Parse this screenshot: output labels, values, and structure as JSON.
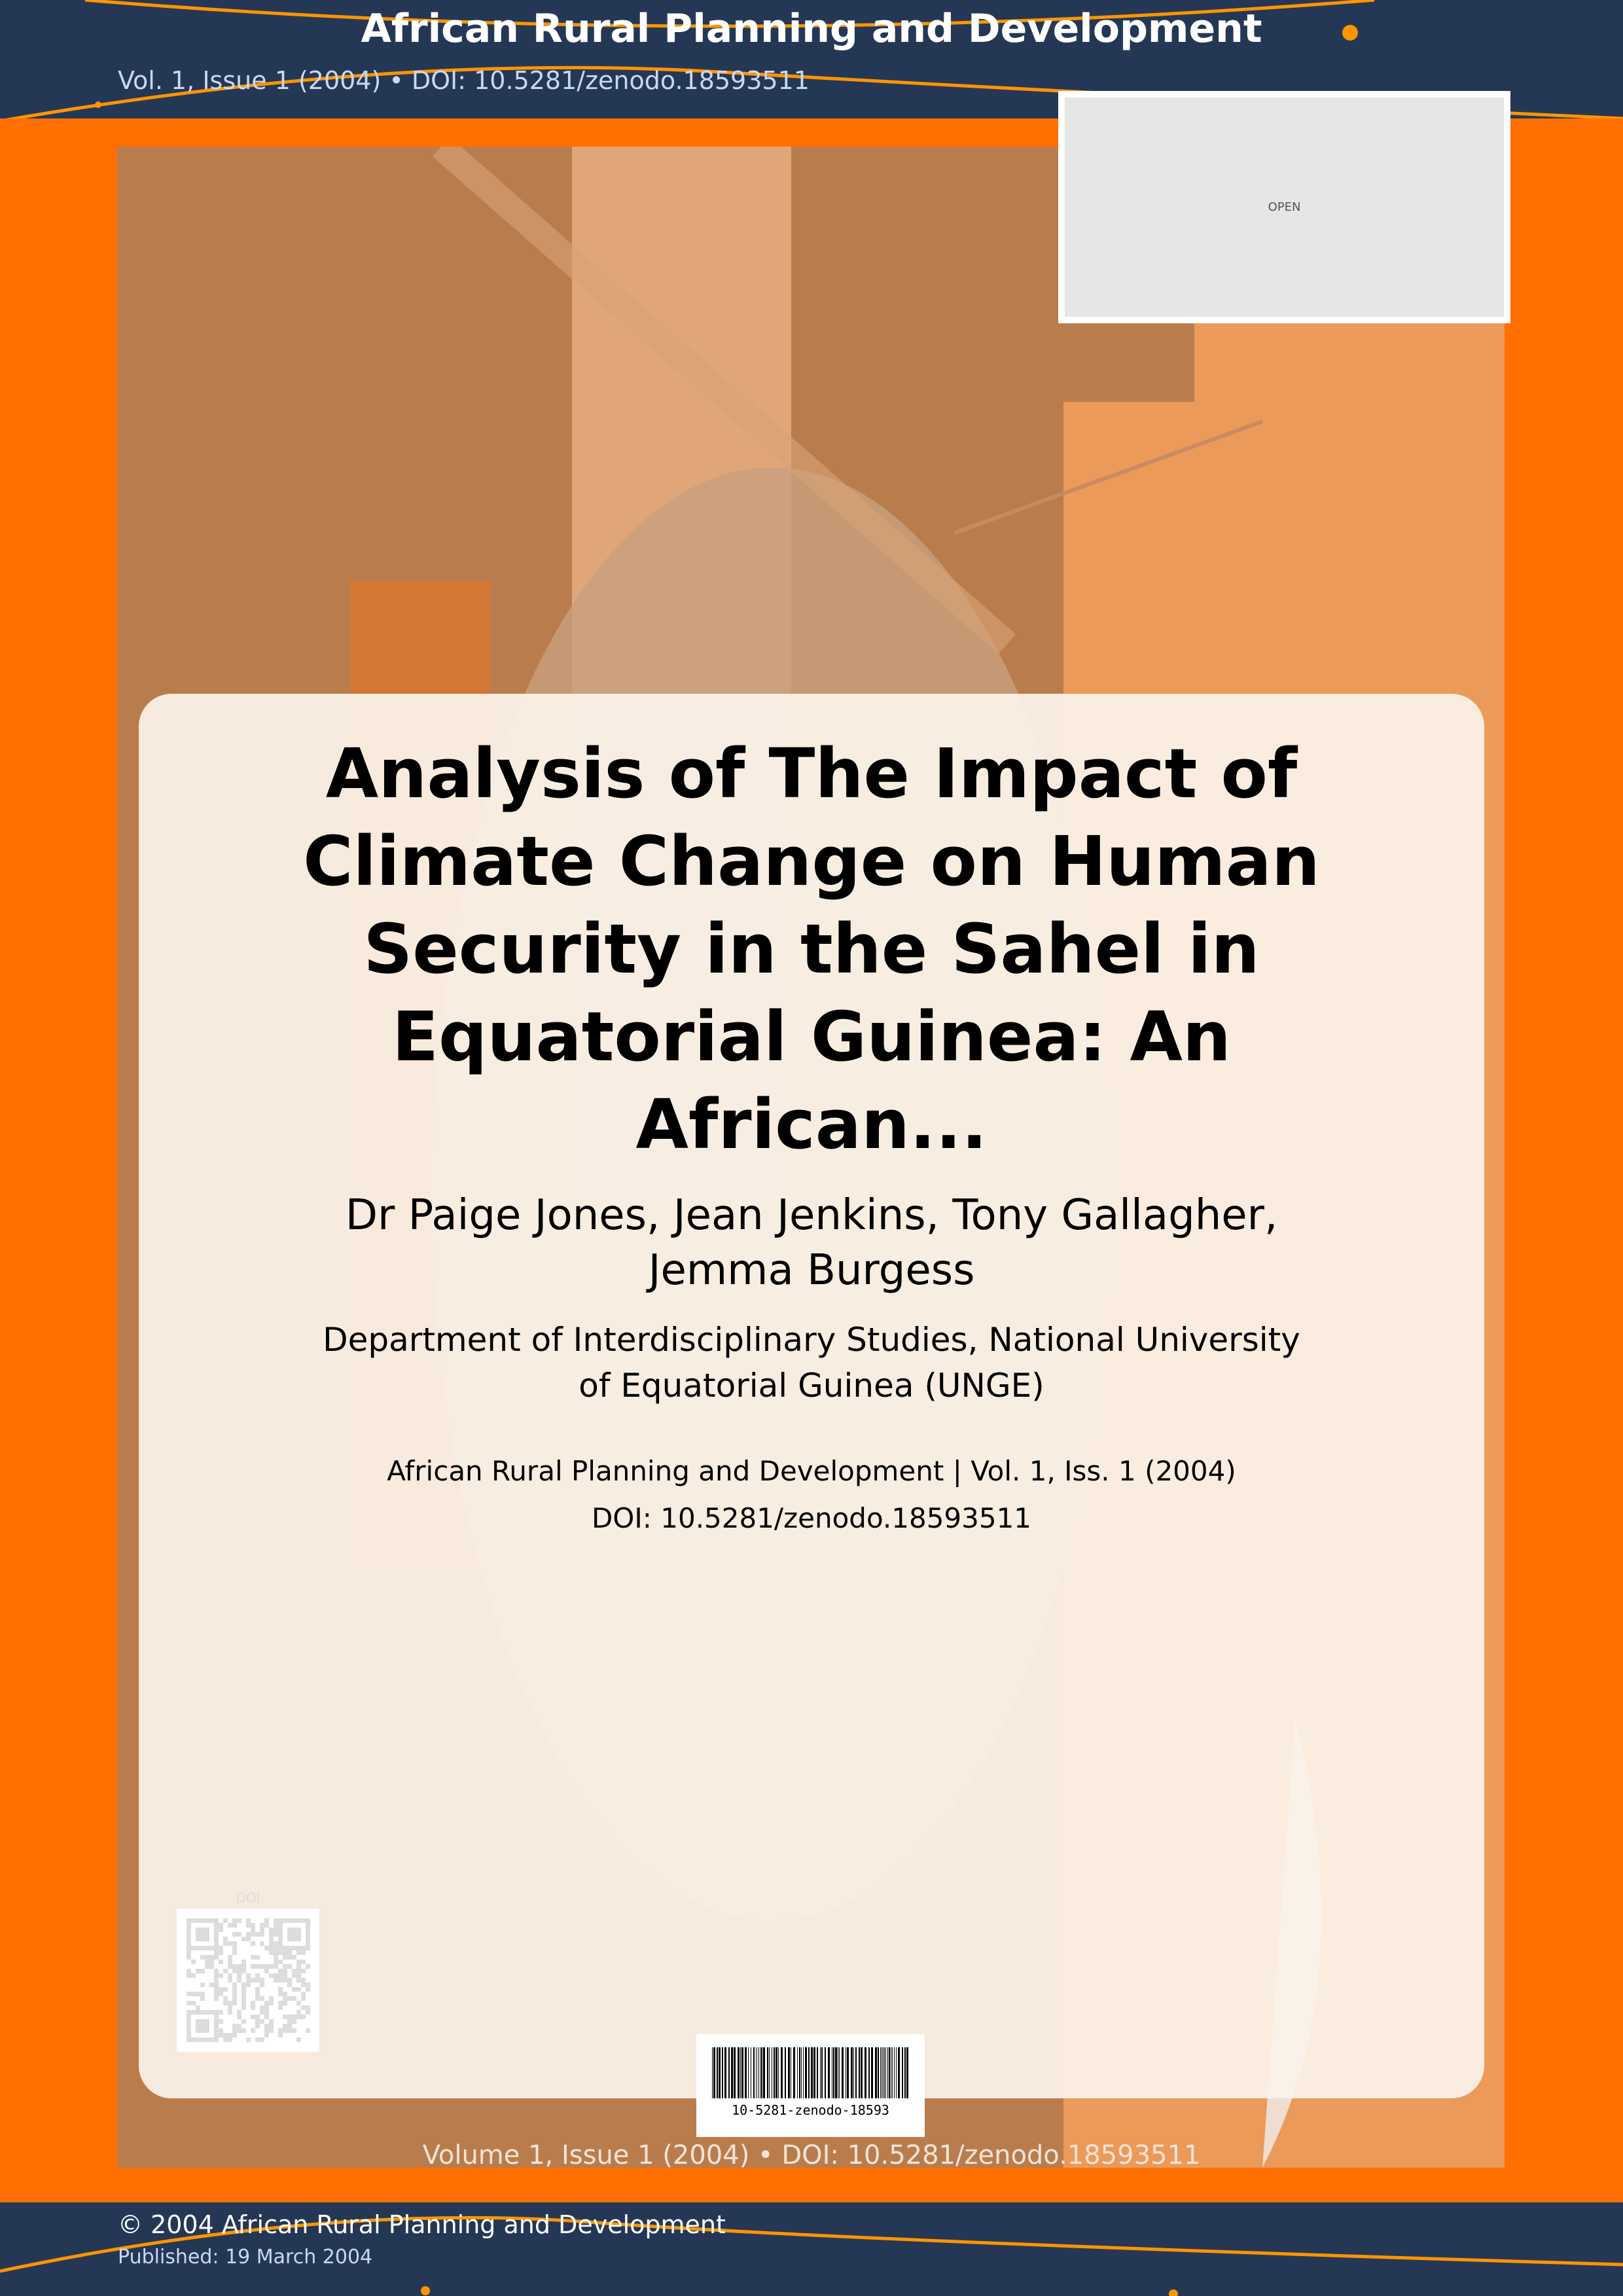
{
  "header": {
    "journal_title": "African Rural Planning and Development",
    "subtitle": "Vol. 1, Issue 1 (2004) • DOI: 10.5281/zenodo.18593511"
  },
  "open_box": {
    "label": "OPEN"
  },
  "article": {
    "title": "Analysis of The Impact of Climate Change on Human Security in the Sahel in Equatorial Guinea: An African...",
    "authors": "Dr Paige Jones, Jean Jenkins, Tony Gallagher, Jemma Burgess",
    "affiliation": "Department of Interdisciplinary Studies, National University of Equatorial Guinea (UNGE)",
    "journal_line": "African Rural Planning and Development | Vol. 1, Iss. 1 (2004)",
    "doi_line": "DOI: 10.5281/zenodo.18593511"
  },
  "qr": {
    "label": "DOI"
  },
  "barcode": {
    "text": "10-5281-zenodo-18593"
  },
  "bottom_volume": "Volume 1, Issue 1 (2004) • DOI: 10.5281/zenodo.18593511",
  "footer": {
    "copyright": "© 2004 African Rural Planning and Development",
    "published": "Published: 19 March 2004"
  },
  "colors": {
    "navy": "#243856",
    "orange": "#ff7000",
    "art_brown": "#b97d4d",
    "card": "#fbf3ea"
  }
}
